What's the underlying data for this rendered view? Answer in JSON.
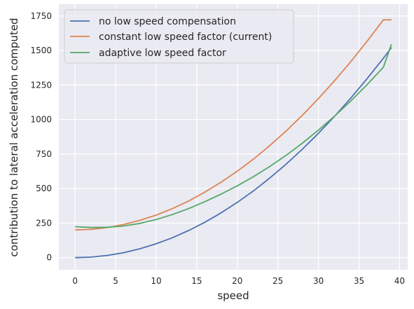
{
  "chart_data": {
    "type": "line",
    "xlabel": "speed",
    "ylabel": "contribution to lateral acceleration computed",
    "xlim": [
      -2,
      41
    ],
    "ylim": [
      -88,
      1835
    ],
    "x_ticks": [
      0,
      5,
      10,
      15,
      20,
      25,
      30,
      35,
      40
    ],
    "y_ticks": [
      0,
      250,
      500,
      750,
      1000,
      1250,
      1500,
      1750
    ],
    "grid": true,
    "legend_position": "upper-left",
    "background_color": "#eaeaf2",
    "series": [
      {
        "name": "no low speed compensation",
        "color": "#4c72b0",
        "x": [
          0,
          2,
          4,
          6,
          8,
          10,
          12,
          14,
          16,
          18,
          20,
          22,
          24,
          26,
          28,
          30,
          32,
          34,
          36,
          38,
          39
        ],
        "y": [
          0,
          4,
          16,
          36,
          64,
          100,
          144,
          196,
          256,
          324,
          400,
          484,
          576,
          676,
          784,
          900,
          1024,
          1156,
          1296,
          1444,
          1521
        ]
      },
      {
        "name": "constant low speed factor (current)",
        "color": "#dd8452",
        "x": [
          0,
          2,
          4,
          6,
          8,
          10,
          12,
          14,
          16,
          18,
          20,
          22,
          24,
          26,
          28,
          30,
          32,
          34,
          36,
          38,
          39
        ],
        "y": [
          200,
          205,
          218,
          240,
          270,
          308,
          355,
          410,
          474,
          546,
          626,
          714,
          811,
          916,
          1030,
          1152,
          1282,
          1420,
          1567,
          1722,
          1722
        ]
      },
      {
        "name": "adaptive low speed factor",
        "color": "#55a868",
        "x": [
          0,
          2,
          4,
          6,
          8,
          10,
          12,
          14,
          16,
          18,
          20,
          22,
          24,
          26,
          28,
          30,
          32,
          34,
          36,
          38,
          39
        ],
        "y": [
          224,
          218,
          220,
          229,
          248,
          276,
          312,
          355,
          405,
          460,
          520,
          587,
          660,
          740,
          828,
          923,
          1025,
          1135,
          1253,
          1379,
          1545
        ]
      }
    ]
  }
}
